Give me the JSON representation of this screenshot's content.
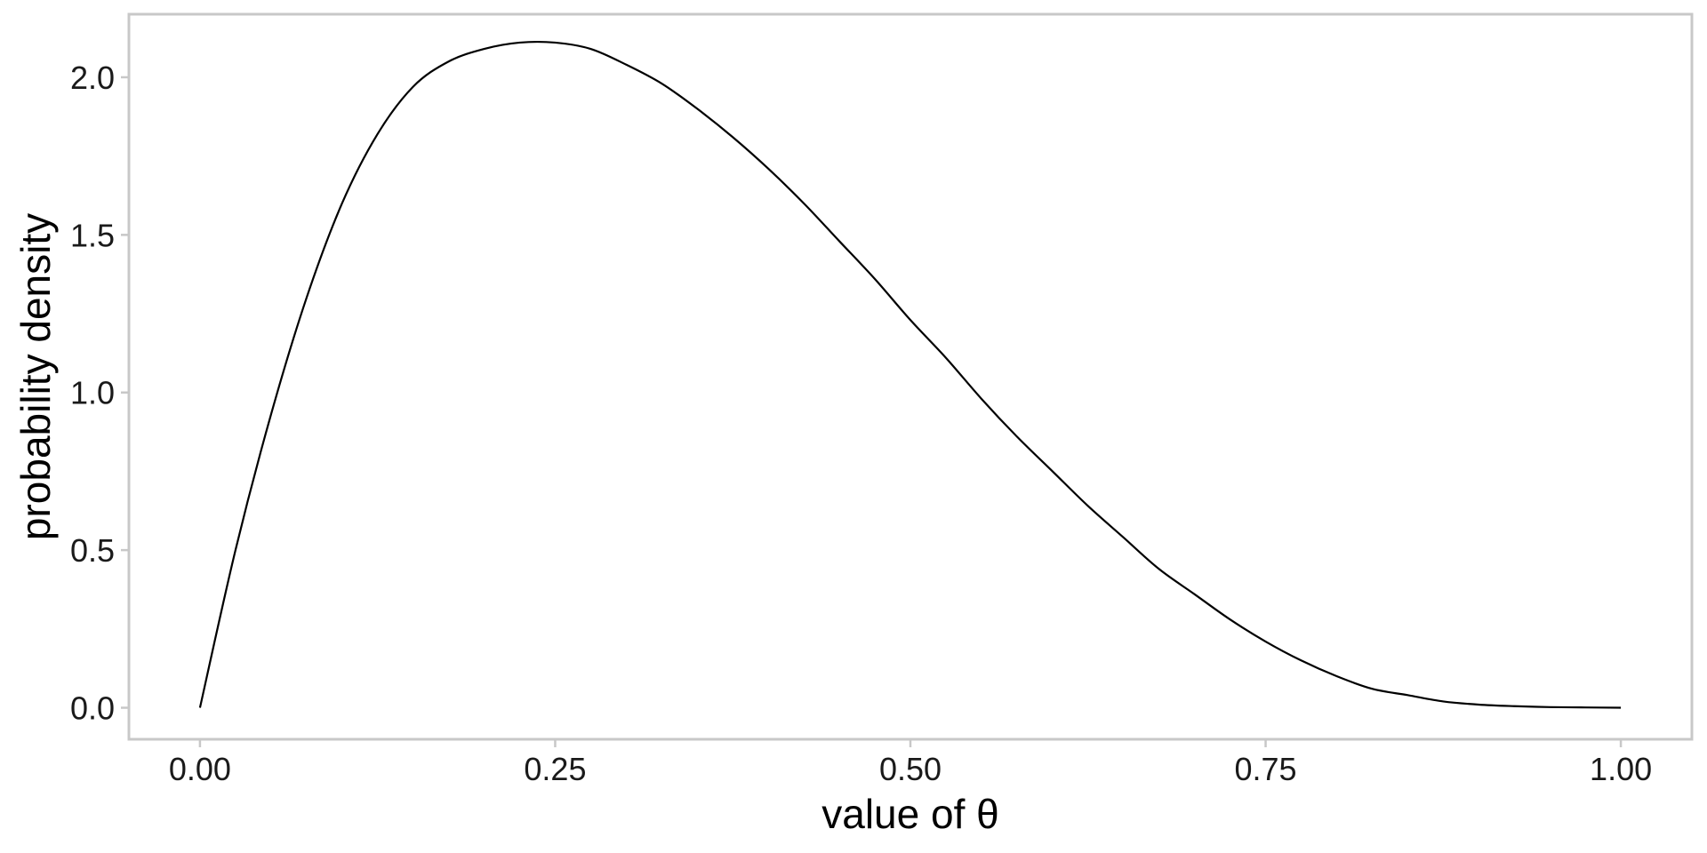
{
  "chart_data": {
    "type": "line",
    "xlabel": "value of θ",
    "ylabel": "probability density",
    "xlim": [
      -0.05,
      1.05
    ],
    "ylim": [
      -0.1,
      2.2
    ],
    "x_ticks": [
      0,
      0.25,
      0.5,
      0.75,
      1
    ],
    "x_tick_labels": [
      "0.00",
      "0.25",
      "0.50",
      "0.75",
      "1.00"
    ],
    "y_ticks": [
      0,
      0.5,
      1,
      1.5,
      2
    ],
    "y_tick_labels": [
      "0.0",
      "0.5",
      "1.0",
      "1.5",
      "2.0"
    ],
    "grid": false,
    "series": [
      {
        "line_color": "#000000",
        "x": [
          0,
          0.025,
          0.05,
          0.075,
          0.1,
          0.125,
          0.15,
          0.175,
          0.2,
          0.225,
          0.25,
          0.275,
          0.3,
          0.325,
          0.35,
          0.375,
          0.4,
          0.425,
          0.45,
          0.475,
          0.5,
          0.525,
          0.55,
          0.575,
          0.6,
          0.625,
          0.65,
          0.675,
          0.7,
          0.725,
          0.75,
          0.775,
          0.8,
          0.825,
          0.85,
          0.875,
          0.9,
          0.925,
          0.95,
          0.975,
          1
        ],
        "y": [
          0,
          0.5,
          0.93,
          1.3,
          1.6,
          1.82,
          1.97,
          2.05,
          2.09,
          2.11,
          2.11,
          2.09,
          2.04,
          1.98,
          1.9,
          1.81,
          1.71,
          1.6,
          1.48,
          1.36,
          1.23,
          1.11,
          0.98,
          0.86,
          0.75,
          0.64,
          0.54,
          0.44,
          0.36,
          0.28,
          0.21,
          0.15,
          0.1,
          0.06,
          0.04,
          0.02,
          0.01,
          0.005,
          0.002,
          0.001,
          0
        ]
      }
    ]
  }
}
